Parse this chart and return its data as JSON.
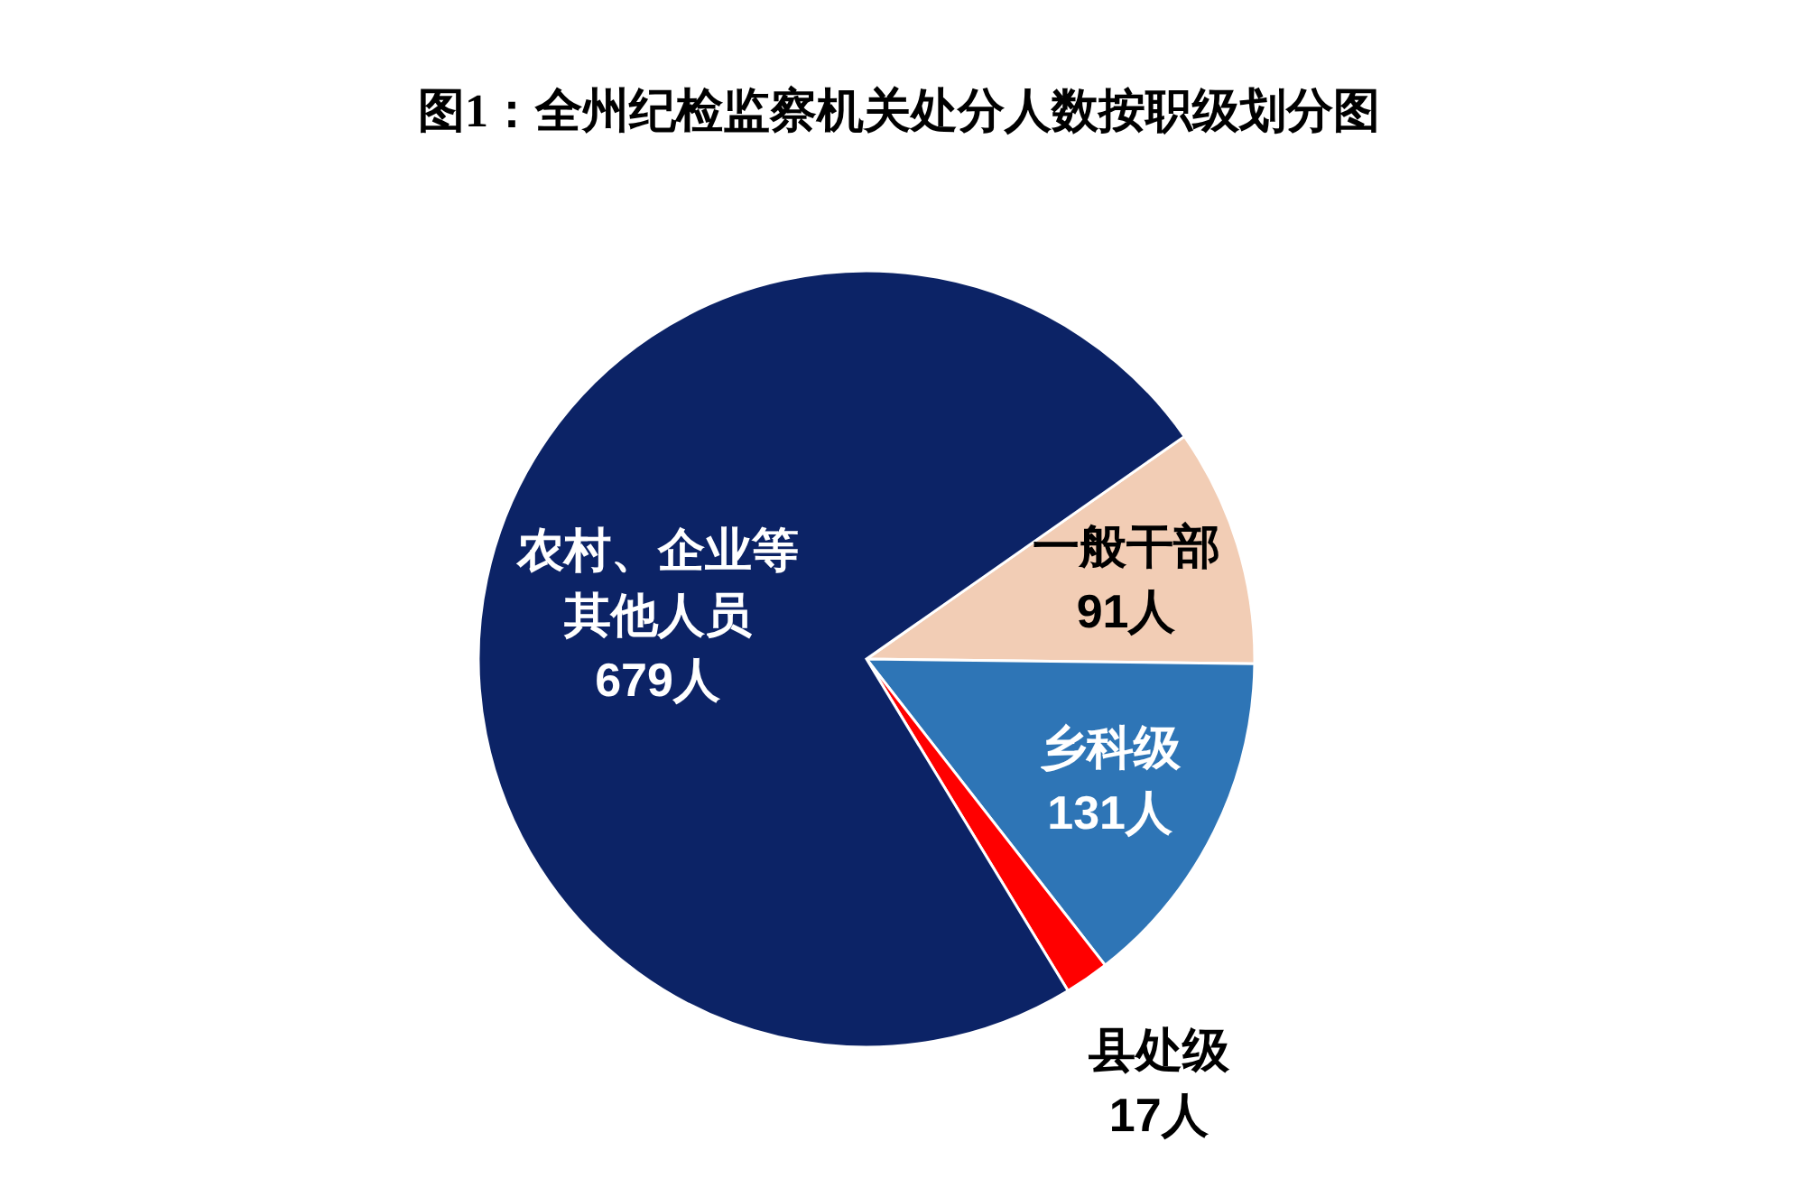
{
  "chart_data": {
    "type": "pie",
    "title": "图1：全州纪检监察机关处分人数按职级划分图",
    "categories": [
      "一般干部",
      "乡科级",
      "县处级",
      "农村、企业等其他人员"
    ],
    "values": [
      91,
      131,
      17,
      679
    ],
    "value_labels": [
      "91人",
      "131人",
      "17人",
      "679人"
    ],
    "colors": [
      "#f2cdb5",
      "#2e75b6",
      "#ff0000",
      "#0c2366"
    ]
  }
}
